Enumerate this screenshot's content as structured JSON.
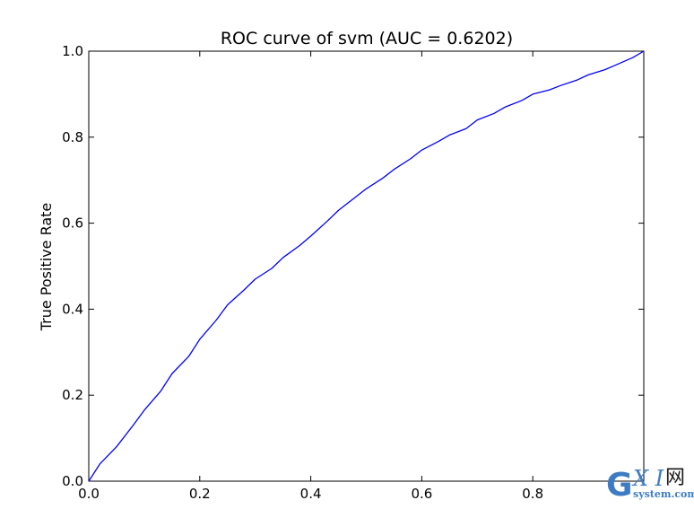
{
  "chart_data": {
    "type": "line",
    "title": "ROC curve of svm (AUC = 0.6202)",
    "xlabel": "",
    "ylabel": "True Positive Rate",
    "xlim": [
      0.0,
      1.0
    ],
    "ylim": [
      0.0,
      1.0
    ],
    "xticks": [
      "0.0",
      "0.2",
      "0.4",
      "0.6",
      "0.8"
    ],
    "yticks": [
      "0.0",
      "0.2",
      "0.4",
      "0.6",
      "0.8",
      "1.0"
    ],
    "grid": false,
    "legend": "none",
    "line_color": "#0000ff",
    "series": [
      {
        "x": [
          0.0,
          0.02,
          0.05,
          0.08,
          0.1,
          0.13,
          0.15,
          0.18,
          0.2,
          0.23,
          0.25,
          0.28,
          0.3,
          0.33,
          0.35,
          0.38,
          0.4,
          0.43,
          0.45,
          0.48,
          0.5,
          0.53,
          0.55,
          0.58,
          0.6,
          0.63,
          0.65,
          0.68,
          0.7,
          0.73,
          0.75,
          0.78,
          0.8,
          0.83,
          0.85,
          0.88,
          0.9,
          0.93,
          0.95,
          0.98,
          1.0
        ],
        "y": [
          0.0,
          0.04,
          0.08,
          0.13,
          0.165,
          0.21,
          0.25,
          0.29,
          0.33,
          0.375,
          0.41,
          0.445,
          0.47,
          0.495,
          0.52,
          0.548,
          0.57,
          0.605,
          0.63,
          0.66,
          0.68,
          0.705,
          0.725,
          0.75,
          0.77,
          0.79,
          0.805,
          0.82,
          0.84,
          0.855,
          0.87,
          0.885,
          0.9,
          0.91,
          0.92,
          0.933,
          0.945,
          0.957,
          0.968,
          0.985,
          1.0
        ]
      }
    ]
  },
  "watermark": {
    "g": "G",
    "xi": "X I",
    "net": "网",
    "site": "system.com"
  }
}
